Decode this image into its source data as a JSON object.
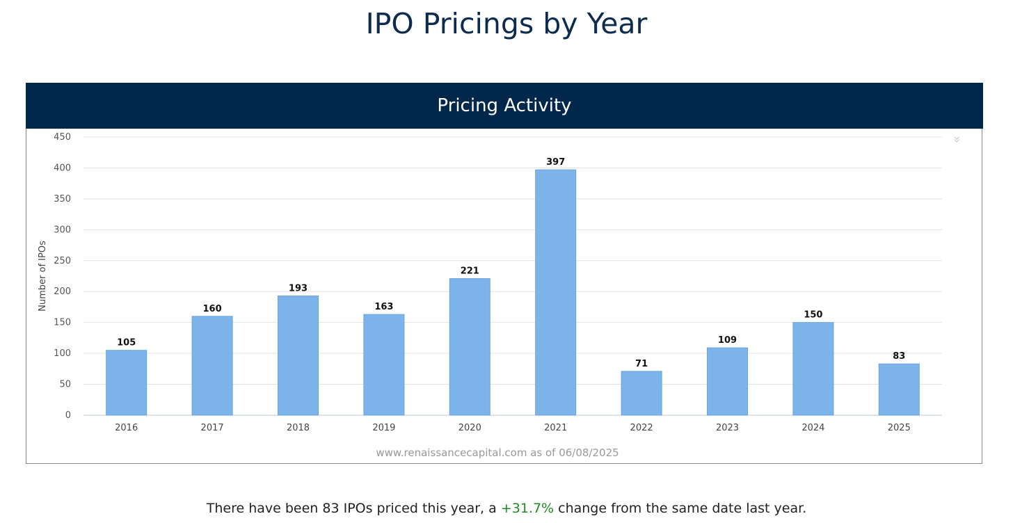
{
  "page_title": "IPO Pricings by Year",
  "chart_header": "Pricing Activity",
  "footer": {
    "prefix": "There have been 83 IPOs priced this year, a ",
    "change": "+31.7%",
    "suffix": " change from the same date last year."
  },
  "colors": {
    "bar": "#7cb4ea",
    "header": "#01274a",
    "positive": "#1f8a1f"
  },
  "chart_data": {
    "type": "bar",
    "title": "Pricing Activity",
    "categories": [
      "2016",
      "2017",
      "2018",
      "2019",
      "2020",
      "2021",
      "2022",
      "2023",
      "2024",
      "2025"
    ],
    "values": [
      105,
      160,
      193,
      163,
      221,
      397,
      71,
      109,
      150,
      83
    ],
    "xlabel": "",
    "ylabel": "Number of IPOs",
    "ylim": [
      0,
      450
    ],
    "yticks": [
      0,
      50,
      100,
      150,
      200,
      250,
      300,
      350,
      400,
      450
    ],
    "grid": true,
    "data_labels": true,
    "credit": "www.renaissancecapital.com as of 06/08/2025"
  }
}
